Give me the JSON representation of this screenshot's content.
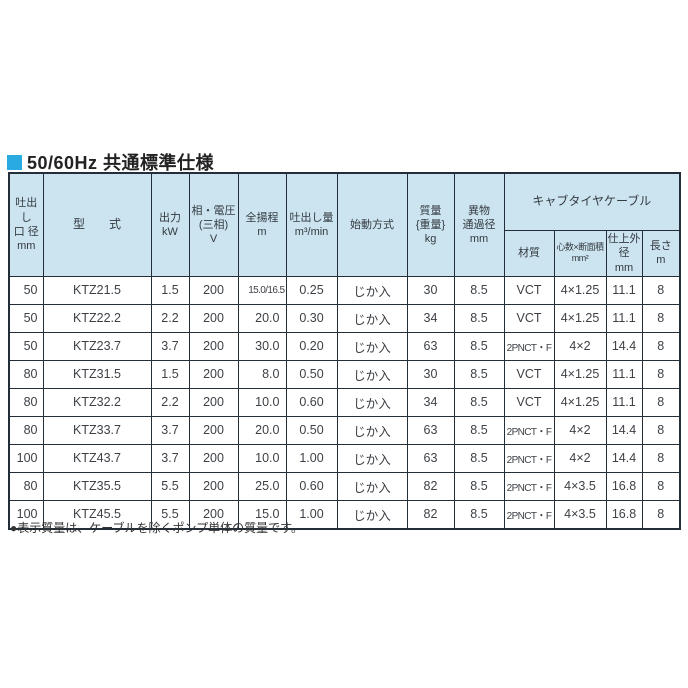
{
  "title": {
    "text": "50/60Hz 共通標準仕様",
    "marker_color": "#29abe2"
  },
  "colors": {
    "accent": "#29abe2",
    "header_bg": "#cce4f0",
    "border": "#232e38",
    "row_bg": "#ffffff",
    "text": "#3d4146"
  },
  "table": {
    "headers": {
      "bore": "吐出し\n口 径\nmm",
      "model": "型　　式",
      "output": "出力\nkW",
      "voltage": "相・電圧\n(三相)\nV",
      "head": "全揚程\nm",
      "capacity": "吐出し量\nm³/min",
      "starting": "始動方式",
      "mass": "質量\n{重量}\nkg",
      "passage": "異物\n通過径\nmm",
      "cable_group": "キャブタイヤケーブル",
      "cable_material": "材質",
      "cable_cores": "心数×断面積\nmm²",
      "cable_od": "仕上外径\nmm",
      "cable_length": "長さ\nm"
    },
    "rows": [
      [
        "50",
        "KTZ21.5",
        "1.5",
        "200",
        "15.0/16.5",
        "0.25",
        "じか入",
        "30",
        "8.5",
        "VCT",
        "4×1.25",
        "11.1",
        "8"
      ],
      [
        "50",
        "KTZ22.2",
        "2.2",
        "200",
        "20.0",
        "0.30",
        "じか入",
        "34",
        "8.5",
        "VCT",
        "4×1.25",
        "11.1",
        "8"
      ],
      [
        "50",
        "KTZ23.7",
        "3.7",
        "200",
        "30.0",
        "0.20",
        "じか入",
        "63",
        "8.5",
        "2PNCT・F",
        "4×2",
        "14.4",
        "8"
      ],
      [
        "80",
        "KTZ31.5",
        "1.5",
        "200",
        "8.0",
        "0.50",
        "じか入",
        "30",
        "8.5",
        "VCT",
        "4×1.25",
        "11.1",
        "8"
      ],
      [
        "80",
        "KTZ32.2",
        "2.2",
        "200",
        "10.0",
        "0.60",
        "じか入",
        "34",
        "8.5",
        "VCT",
        "4×1.25",
        "11.1",
        "8"
      ],
      [
        "80",
        "KTZ33.7",
        "3.7",
        "200",
        "20.0",
        "0.50",
        "じか入",
        "63",
        "8.5",
        "2PNCT・F",
        "4×2",
        "14.4",
        "8"
      ],
      [
        "100",
        "KTZ43.7",
        "3.7",
        "200",
        "10.0",
        "1.00",
        "じか入",
        "63",
        "8.5",
        "2PNCT・F",
        "4×2",
        "14.4",
        "8"
      ],
      [
        "80",
        "KTZ35.5",
        "5.5",
        "200",
        "25.0",
        "0.60",
        "じか入",
        "82",
        "8.5",
        "2PNCT・F",
        "4×3.5",
        "16.8",
        "8"
      ],
      [
        "100",
        "KTZ45.5",
        "5.5",
        "200",
        "15.0",
        "1.00",
        "じか入",
        "82",
        "8.5",
        "2PNCT・F",
        "4×3.5",
        "16.8",
        "8"
      ]
    ]
  },
  "footnote": "●表示質量は、ケーブルを除くポンプ単体の質量です。"
}
